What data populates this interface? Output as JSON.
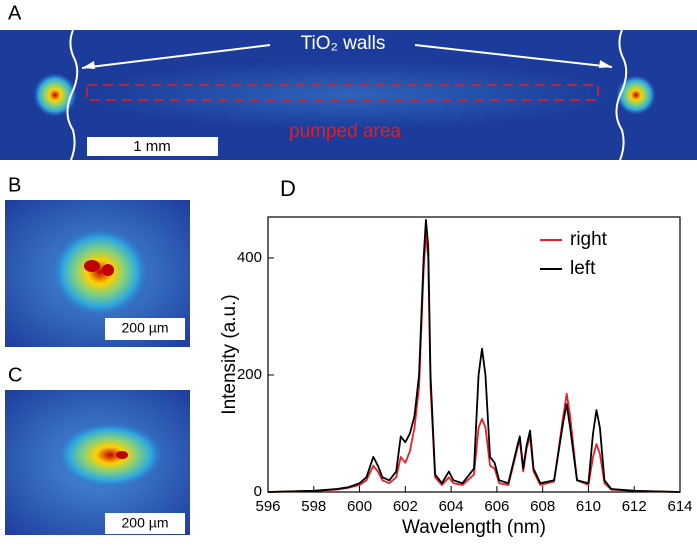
{
  "panel_labels": [
    "A",
    "B",
    "C",
    "D"
  ],
  "annotations": {
    "walls": "TiO₂ walls",
    "pumped": "pumped area",
    "scale_a": "1 mm",
    "scale_b": "200 µm",
    "scale_c": "200 µm"
  },
  "chart_data": {
    "type": "line",
    "x_label": "Wavelength (nm)",
    "y_label": "Intensity (a.u.)",
    "x": [
      596,
      598,
      599,
      599.5,
      600,
      600.3,
      600.6,
      600.8,
      601,
      601.3,
      601.6,
      601.8,
      602,
      602.2,
      602.4,
      602.6,
      602.8,
      602.9,
      603,
      603.1,
      603.3,
      603.6,
      603.9,
      604.1,
      604.5,
      605,
      605.2,
      605.35,
      605.5,
      605.7,
      605.9,
      606.1,
      606.5,
      606.9,
      607,
      607.15,
      607.3,
      607.45,
      607.6,
      607.9,
      608.5,
      608.9,
      609.05,
      609.2,
      609.5,
      610,
      610.2,
      610.35,
      610.5,
      610.7,
      611,
      612,
      614
    ],
    "series": [
      {
        "name": "right",
        "color": "#e8202a",
        "values": [
          0,
          2,
          4,
          7,
          12,
          20,
          45,
          35,
          20,
          15,
          25,
          60,
          50,
          70,
          110,
          180,
          380,
          440,
          400,
          180,
          25,
          12,
          25,
          15,
          12,
          30,
          110,
          125,
          110,
          45,
          40,
          15,
          12,
          75,
          90,
          35,
          75,
          95,
          35,
          12,
          18,
          130,
          168,
          130,
          20,
          12,
          60,
          82,
          65,
          15,
          4,
          2,
          0
        ]
      },
      {
        "name": "left",
        "color": "#000000",
        "values": [
          0,
          2,
          5,
          8,
          15,
          25,
          60,
          45,
          25,
          20,
          35,
          95,
          85,
          100,
          130,
          200,
          400,
          465,
          420,
          200,
          30,
          15,
          35,
          20,
          15,
          40,
          200,
          245,
          200,
          60,
          50,
          20,
          15,
          80,
          95,
          40,
          80,
          105,
          40,
          15,
          20,
          120,
          150,
          110,
          20,
          15,
          100,
          140,
          110,
          20,
          5,
          2,
          0
        ]
      }
    ],
    "xlim": [
      596,
      614
    ],
    "xticks": [
      596,
      598,
      600,
      602,
      604,
      606,
      608,
      610,
      612,
      614
    ],
    "ylim": [
      0,
      470
    ],
    "yticks": [
      0,
      200,
      400
    ],
    "legend": "upper right"
  }
}
